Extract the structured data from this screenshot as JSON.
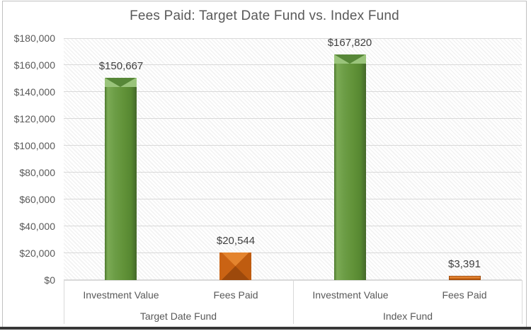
{
  "chart_data": {
    "type": "bar",
    "title": "Fees Paid: Target Date Fund vs. Index Fund",
    "groups": [
      {
        "label": "Target Date Fund",
        "categories": [
          "Investment Value",
          "Fees Paid"
        ],
        "values": [
          150667,
          20544
        ],
        "value_labels": [
          "$150,667",
          "$20,544"
        ]
      },
      {
        "label": "Index Fund",
        "categories": [
          "Investment Value",
          "Fees Paid"
        ],
        "values": [
          167820,
          3391
        ],
        "value_labels": [
          "$167,820",
          "$3,391"
        ]
      }
    ],
    "series_colors": {
      "Investment Value": "#61923c",
      "Fees Paid": "#c55a11"
    },
    "ylabel": "",
    "xlabel": "",
    "ylim": [
      0,
      180000
    ],
    "y_tick_step": 20000,
    "y_tick_labels": [
      "$0",
      "$20,000",
      "$40,000",
      "$60,000",
      "$80,000",
      "$100,000",
      "$120,000",
      "$140,000",
      "$160,000",
      "$180,000"
    ],
    "grid": true,
    "legend": "none",
    "plot_fill": "diagonal-hatch"
  },
  "colors": {
    "green_bar": "#61923c",
    "orange_bar": "#c55a11",
    "gridline": "#d9d9d9",
    "axis_text": "#595959",
    "data_label_text": "#404040",
    "chart_border": "#c0c0c0",
    "bottom_edge": "#383838"
  }
}
